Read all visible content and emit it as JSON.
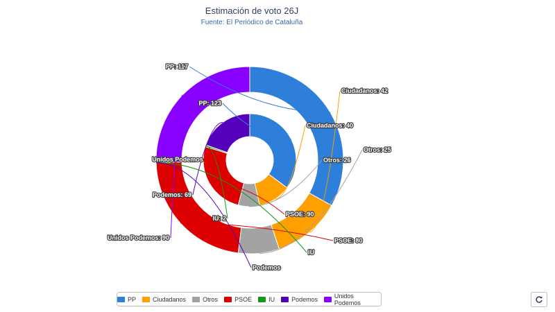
{
  "chart_data": {
    "type": "pie",
    "title": "Estimación de voto 26J",
    "subtitle": "Fuente: El Periódico de Cataluña",
    "rings": [
      {
        "slices": [
          {
            "category": "PP",
            "label": "PP: 123",
            "value": 123
          },
          {
            "category": "Ciudadanos",
            "label": "Ciudadanos: 40",
            "value": 40
          },
          {
            "category": "Otros",
            "label": "Otros: 26",
            "value": 26
          },
          {
            "category": "PSOE",
            "label": "PSOE: 90",
            "value": 90
          },
          {
            "category": "IU",
            "label": "IU: 2",
            "value": 2
          },
          {
            "category": "Podemos",
            "label": "Podemos: 69",
            "value": 69
          }
        ]
      },
      {
        "slices": [
          {
            "category": "PP",
            "label": "PP: 117",
            "value": 117
          },
          {
            "category": "Ciudadanos",
            "label": "Ciudadanos: 42",
            "value": 42
          },
          {
            "category": "Otros",
            "label": "Otros: 25",
            "value": 25
          },
          {
            "category": "PSOE",
            "label": "PSOE: 80",
            "value": 80
          },
          {
            "category": "IU",
            "label": "IU",
            "value": 0
          },
          {
            "category": "Podemos",
            "label": "Podemos",
            "value": 0
          },
          {
            "category": "Unidos Podemos",
            "label": "Unidos Podemos: 90",
            "value": 90
          }
        ]
      }
    ],
    "inner_empty_label": "Unidos Podemos",
    "legend": {
      "placement": "bottom",
      "items": [
        "PP",
        "Ciudadanos",
        "Otros",
        "PSOE",
        "IU",
        "Podemos",
        "Unidos Podemos"
      ]
    },
    "colors": {
      "PP": "#2e7fd9",
      "Ciudadanos": "#ff9f00",
      "Otros": "#a3a3a3",
      "PSOE": "#dd0000",
      "IU": "#119911",
      "Podemos": "#5500bb",
      "Unidos Podemos": "#8800ff"
    }
  },
  "controls": {
    "refresh_icon": "refresh-icon"
  }
}
